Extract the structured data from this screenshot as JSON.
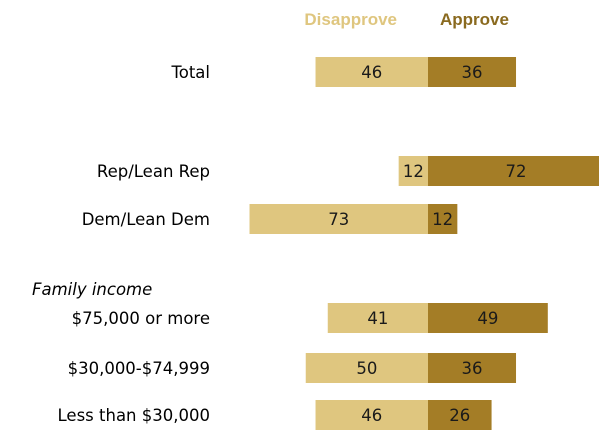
{
  "chart_data": {
    "type": "bar",
    "orientation": "horizontal-diverging",
    "legend": [
      "Disapprove",
      "Approve"
    ],
    "legend_placement": "top",
    "colors": {
      "disapprove": "#dfc67f",
      "approve": "#a47d26",
      "disapprove_text": "#dfc67f",
      "approve_text": "#8a6a1f"
    },
    "group_label": "Family income",
    "categories": [
      "Total",
      "Rep/Lean Rep",
      "Dem/Lean Dem",
      "$75,000 or more",
      "$30,000-$74,999",
      "Less than $30,000"
    ],
    "series": [
      {
        "name": "Disapprove",
        "values": [
          46,
          12,
          73,
          41,
          50,
          46
        ]
      },
      {
        "name": "Approve",
        "values": [
          36,
          72,
          12,
          49,
          36,
          26
        ]
      }
    ],
    "grid": false
  }
}
